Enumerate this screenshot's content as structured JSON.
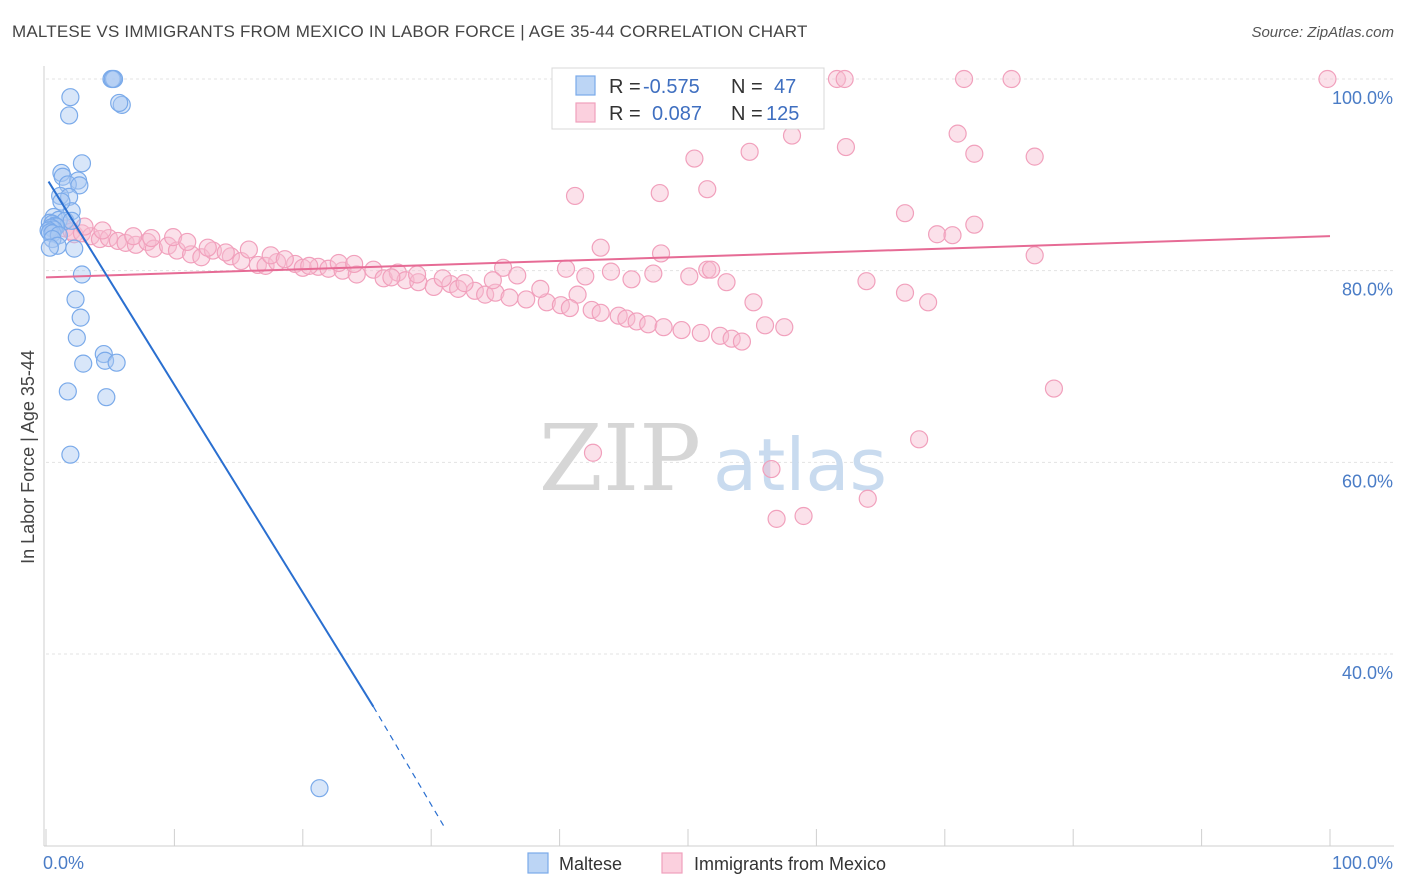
{
  "title": "MALTESE VS IMMIGRANTS FROM MEXICO IN LABOR FORCE | AGE 35-44 CORRELATION CHART",
  "source": "Source: ZipAtlas.com",
  "watermark": {
    "zip": "ZIP",
    "atlas": "atlas"
  },
  "chart_data": {
    "type": "scatter",
    "ylabel": "In Labor Force | Age 35-44",
    "x_ticks": [
      "0.0%",
      "100.0%"
    ],
    "y_ticks": [
      "100.0%",
      "80.0%",
      "60.0%",
      "40.0%"
    ],
    "xlim": [
      0,
      100
    ],
    "ylim": [
      20,
      101
    ],
    "grid": true,
    "legend_position": "top-center",
    "legend": [
      {
        "name": "Maltese",
        "r_label": "R =",
        "r": "-0.575",
        "n_label": "N =",
        "n": "47",
        "color": "#7aaaea"
      },
      {
        "name": "Immigrants from Mexico",
        "r_label": "R =",
        "r": "0.087",
        "n_label": "N =",
        "n": "125",
        "color": "#f1a0bc"
      }
    ],
    "series": [
      {
        "name": "Maltese",
        "color": "#7aaaea",
        "line_color": "#2a6fd0",
        "trend": {
          "x0": 0.2,
          "y0": 89.3,
          "x1": 25.5,
          "y1": 34.5,
          "dash_x1": 31.0,
          "dash_y1": 22.0
        },
        "x": [
          5.1,
          5.3,
          5.2,
          1.9,
          5.9,
          5.7,
          1.8,
          2.8,
          1.2,
          1.3,
          2.5,
          1.7,
          2.6,
          1.1,
          1.8,
          2.0,
          0.6,
          1.0,
          1.5,
          2.0,
          0.3,
          0.5,
          0.7,
          0.8,
          0.4,
          0.6,
          0.2,
          0.3,
          0.5,
          1.0,
          0.5,
          0.9,
          0.3,
          2.2,
          2.8,
          2.3,
          2.7,
          2.4,
          4.5,
          4.6,
          2.9,
          4.7,
          5.5,
          1.7,
          1.9,
          21.3,
          1.2
        ],
        "y": [
          100.0,
          100.0,
          100.0,
          98.1,
          97.3,
          97.5,
          96.2,
          91.2,
          90.2,
          89.8,
          89.4,
          89.0,
          88.9,
          87.8,
          87.7,
          86.2,
          85.6,
          85.3,
          85.2,
          85.2,
          85.0,
          84.9,
          84.7,
          84.6,
          84.5,
          84.3,
          84.2,
          84.0,
          83.9,
          83.7,
          83.3,
          82.6,
          82.4,
          82.3,
          79.6,
          77.0,
          75.1,
          73.0,
          71.3,
          70.6,
          70.3,
          66.8,
          70.4,
          67.4,
          60.8,
          26.0,
          87.2
        ]
      },
      {
        "name": "Immigrants from Mexico",
        "color": "#f1a0bc",
        "line_color": "#e66b95",
        "trend": {
          "x0": 0.0,
          "y0": 79.3,
          "x1": 100.0,
          "y1": 83.6
        },
        "x": [
          47.8,
          51.5,
          55.2,
          59.5,
          61.6,
          62.2,
          71.5,
          75.2,
          99.8,
          66.9,
          58.1,
          71.0,
          62.3,
          54.8,
          50.5,
          72.3,
          77.0,
          41.2,
          47.9,
          55.1,
          43.2,
          51.5,
          35.6,
          41.4,
          1.5,
          2.0,
          2.2,
          2.8,
          3.5,
          4.2,
          4.9,
          5.6,
          6.2,
          7.0,
          7.9,
          8.4,
          9.5,
          10.2,
          11.3,
          12.1,
          13.0,
          14.4,
          15.2,
          16.5,
          17.1,
          18.0,
          19.4,
          20.0,
          21.2,
          22.0,
          23.1,
          24.2,
          25.5,
          26.3,
          27.4,
          28.0,
          29.0,
          30.2,
          31.5,
          32.1,
          33.4,
          34.2,
          35.0,
          36.1,
          37.4,
          39.0,
          40.1,
          40.8,
          42.5,
          43.2,
          44.6,
          45.2,
          46.0,
          46.9,
          48.1,
          49.5,
          51.0,
          52.5,
          53.4,
          54.2,
          3.0,
          4.4,
          6.8,
          8.2,
          9.9,
          11.0,
          12.6,
          14.0,
          15.8,
          17.5,
          18.6,
          20.5,
          22.8,
          24.0,
          26.9,
          28.9,
          30.9,
          32.6,
          34.8,
          36.7,
          38.5,
          40.5,
          42.0,
          44.0,
          45.6,
          47.3,
          50.1,
          51.8,
          53.0,
          56.0,
          57.5,
          63.9,
          66.9,
          68.7,
          69.4,
          70.6,
          72.3,
          77.0,
          78.5,
          68.0,
          59.0,
          64.0,
          56.5,
          56.9,
          42.6
        ],
        "y": [
          88.1,
          88.5,
          97.4,
          100.0,
          100.0,
          100.0,
          100.0,
          100.0,
          100.0,
          86.0,
          94.1,
          94.3,
          92.9,
          92.4,
          91.7,
          92.2,
          91.9,
          87.8,
          81.8,
          76.7,
          82.4,
          80.1,
          80.3,
          77.5,
          84.4,
          84.1,
          83.8,
          83.9,
          83.6,
          83.3,
          83.4,
          83.1,
          82.9,
          82.7,
          83.0,
          82.3,
          82.6,
          82.1,
          81.7,
          81.4,
          82.1,
          81.5,
          81.0,
          80.6,
          80.5,
          80.9,
          80.7,
          80.3,
          80.4,
          80.2,
          80.0,
          79.6,
          80.1,
          79.2,
          79.8,
          79.0,
          78.8,
          78.3,
          78.6,
          78.1,
          77.9,
          77.5,
          77.7,
          77.2,
          77.0,
          76.7,
          76.4,
          76.1,
          75.9,
          75.6,
          75.3,
          75.0,
          74.7,
          74.4,
          74.1,
          73.8,
          73.5,
          73.2,
          72.9,
          72.6,
          84.6,
          84.2,
          83.6,
          83.4,
          83.5,
          83.0,
          82.4,
          81.9,
          82.2,
          81.6,
          81.2,
          80.5,
          80.8,
          80.7,
          79.3,
          79.6,
          79.2,
          78.7,
          79.0,
          79.5,
          78.1,
          80.2,
          79.4,
          79.9,
          79.1,
          79.7,
          79.4,
          80.1,
          78.8,
          74.3,
          74.1,
          78.9,
          77.7,
          76.7,
          83.8,
          83.7,
          84.8,
          81.6,
          67.7,
          62.4,
          54.4,
          56.2,
          59.3,
          54.1,
          61.0
        ]
      }
    ]
  }
}
